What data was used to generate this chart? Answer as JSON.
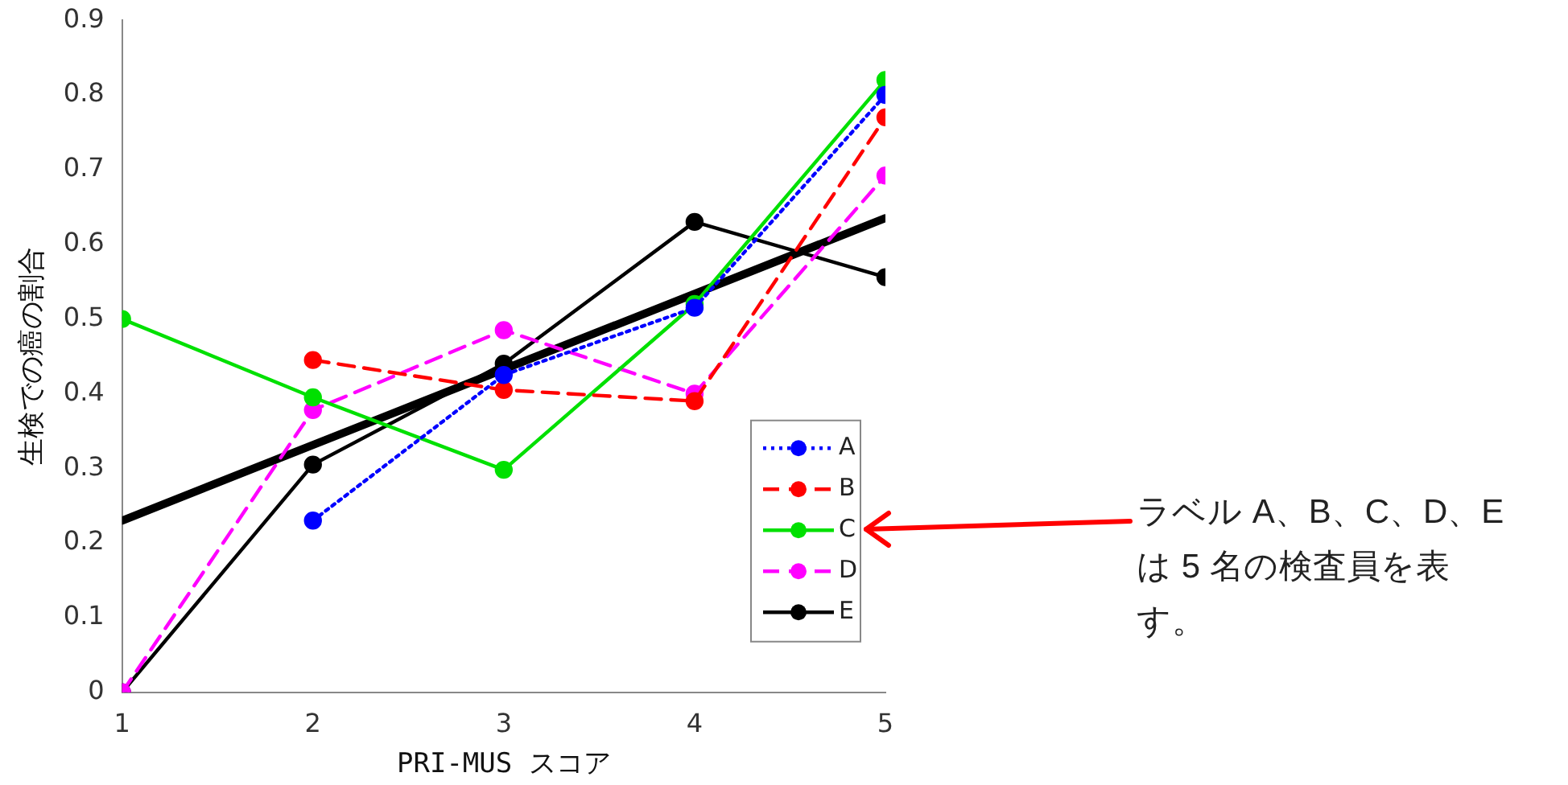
{
  "chart_data": {
    "type": "line",
    "xlabel": "PRI-MUS スコア",
    "ylabel": "生検での癌の割合",
    "xlim": [
      1,
      5
    ],
    "xticks": [
      1,
      2,
      3,
      4,
      5
    ],
    "ylim": [
      0,
      0.9
    ],
    "yticks": [
      0,
      0.1,
      0.2,
      0.3,
      0.4,
      0.5,
      0.6,
      0.7,
      0.8,
      0.9
    ],
    "legend": "right",
    "marker": "circle",
    "annotations": [
      "ラベル A、B、C、D、E は 5 名の検査員を表す。"
    ],
    "series": [
      {
        "name": "A",
        "color": "#0000ff",
        "line_style": "dotted",
        "x": [
          2,
          3,
          4,
          5
        ],
        "values": [
          0.23,
          0.425,
          0.515,
          0.8
        ]
      },
      {
        "name": "B",
        "color": "#ff0000",
        "line_style": "dashed",
        "x": [
          2,
          3,
          4,
          5
        ],
        "values": [
          0.445,
          0.405,
          0.39,
          0.77
        ]
      },
      {
        "name": "C",
        "color": "#00e000",
        "line_style": "solid",
        "x": [
          1,
          2,
          3,
          4,
          5
        ],
        "values": [
          0.5,
          0.395,
          0.298,
          0.52,
          0.82
        ]
      },
      {
        "name": "D",
        "color": "#ff00ff",
        "line_style": "dashed",
        "x": [
          1,
          2,
          3,
          4,
          5
        ],
        "values": [
          0,
          0.378,
          0.485,
          0.4,
          0.692
        ]
      },
      {
        "name": "E",
        "color": "#000000",
        "line_style": "solid",
        "x": [
          1,
          2,
          3,
          4,
          5
        ],
        "values": [
          0,
          0.305,
          0.44,
          0.63,
          0.556
        ]
      },
      {
        "type": "line",
        "color": "#000000",
        "line_style": "solid",
        "marker": "none",
        "x": [
          1,
          5
        ],
        "values": [
          0.23,
          0.635
        ]
      }
    ]
  }
}
